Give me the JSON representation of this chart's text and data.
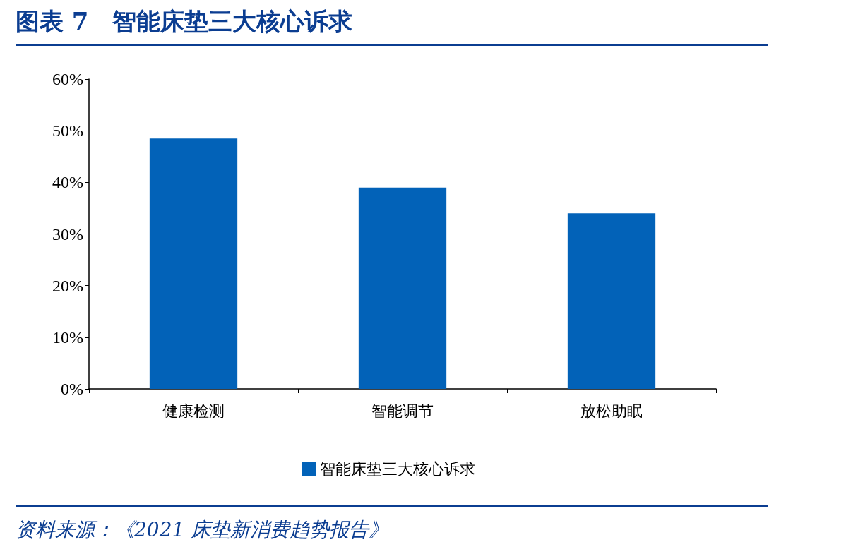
{
  "chart_data": {
    "type": "bar",
    "title": "图表 7　智能床垫三大核心诉求",
    "categories": [
      "健康检测",
      "智能调节",
      "放松助眠"
    ],
    "series": [
      {
        "name": "智能床垫三大核心诉求",
        "color": "#0262b8",
        "values": [
          48.5,
          39,
          34
        ]
      }
    ],
    "ylim": [
      0,
      60
    ],
    "yticks": [
      {
        "value": 0,
        "label": "0%"
      },
      {
        "value": 10,
        "label": "10%"
      },
      {
        "value": 20,
        "label": "20%"
      },
      {
        "value": 30,
        "label": "30%"
      },
      {
        "value": 40,
        "label": "40%"
      },
      {
        "value": 50,
        "label": "50%"
      },
      {
        "value": 60,
        "label": "60%"
      }
    ],
    "grid": false,
    "legend": "bottom",
    "annotations": [
      "资料来源：《2021 床垫新消费趋势报告》"
    ]
  }
}
